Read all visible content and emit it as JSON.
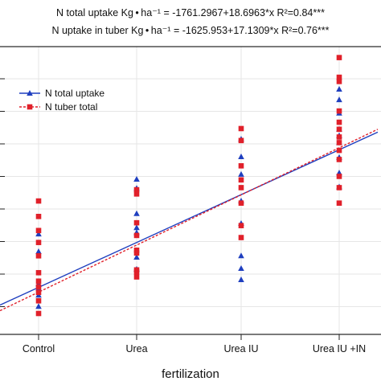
{
  "equations": {
    "line1": "N total uptake Kg • ha⁻¹ = -1761.2967+18.6963*x  R²=0.84***",
    "line2": "N uptake in tuber Kg • ha⁻¹ = -1625.953+17.1309*x  R²=0.76***"
  },
  "chart_data": {
    "type": "scatter",
    "xlabel": "fertilization",
    "categories": [
      "Control",
      "Urea",
      "Urea IU",
      "Urea IU +IN"
    ],
    "legend": {
      "placement": "top-left"
    },
    "grid": true,
    "series": [
      {
        "name": "N total uptake",
        "color": "#1f3fbf",
        "marker": "triangle",
        "line": "solid",
        "points": {
          "Control": [
            113,
            88,
            42,
            36,
            26,
            10
          ],
          "Urea": [
            191,
            178,
            142,
            122,
            115,
            80,
            63
          ],
          "Urea IU": [
            248,
            223,
            198,
            160,
            128,
            82,
            64,
            48
          ],
          "Urea IU +IN": [
            319,
            304,
            285,
            262,
            253,
            243,
            222,
            200,
            180
          ]
        }
      },
      {
        "name": "N tuber total",
        "color": "#e0202a",
        "marker": "square",
        "line": "dashed",
        "points": {
          "Control": [
            160,
            138,
            118,
            101,
            82,
            58,
            46,
            38,
            30,
            18,
            0
          ],
          "Urea": [
            176,
            170,
            129,
            111,
            90,
            86,
            62,
            59,
            52
          ],
          "Urea IU": [
            263,
            246,
            210,
            190,
            179,
            157,
            125,
            108
          ],
          "Urea IU +IN": [
            364,
            336,
            330,
            288,
            272,
            262,
            251,
            243,
            232,
            219,
            195,
            179,
            157
          ]
        }
      }
    ],
    "fits": [
      {
        "series": "N total uptake",
        "start": 12,
        "end": 258
      },
      {
        "series": "N tuber total",
        "start": 4,
        "end": 262
      }
    ]
  }
}
